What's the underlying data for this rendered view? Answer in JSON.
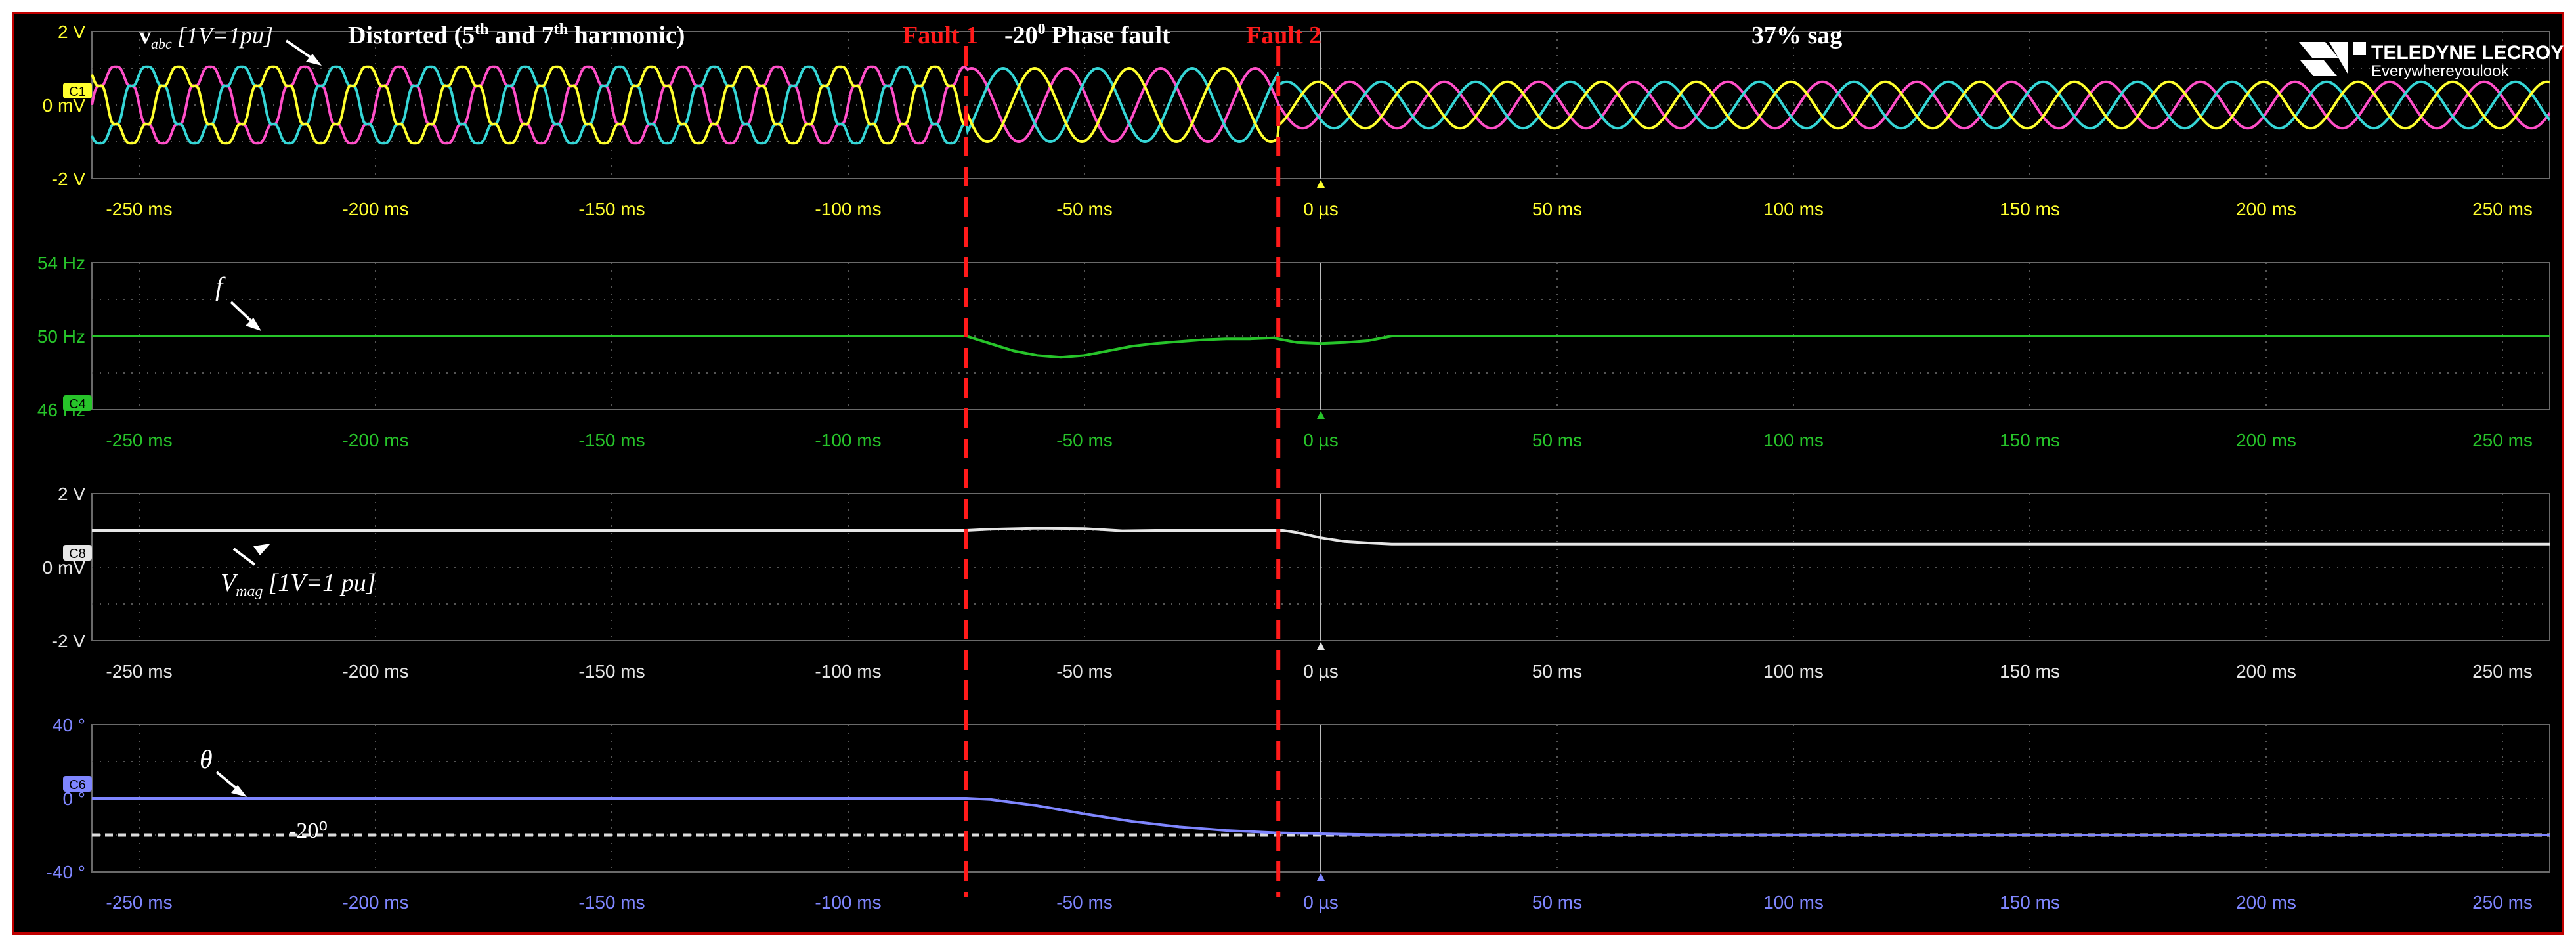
{
  "colors": {
    "phase_a": "#ff4fc8",
    "phase_b": "#35d6d6",
    "phase_c": "#ffff2e",
    "frequency": "#27c42a",
    "magnitude": "#e6e6e6",
    "angle": "#7f86ff",
    "fault_marker": "#ff1a1a",
    "frame_border": "#c00000",
    "annotation": "#ffffff"
  },
  "brand": {
    "name": "TELEDYNE LECROY",
    "tagline": "Everywhereyoulook"
  },
  "annotations": {
    "vabc_label": "v",
    "vabc_sub": "abc",
    "vabc_scale": "[1V=1pu]",
    "distorted_prefix": "Distorted (5",
    "distorted_sup1": "th",
    "distorted_mid": " and 7",
    "distorted_sup2": "th",
    "distorted_suffix": " harmonic)",
    "fault1": "Fault 1",
    "phase_fault_prefix": "-20",
    "phase_fault_sup": "0",
    "phase_fault_suffix": " Phase fault",
    "fault2": "Fault 2",
    "sag": "37% sag",
    "f_label": "f",
    "vmag_label": "V",
    "vmag_sub": "mag",
    "vmag_scale": "[1V=1 pu]",
    "theta_label": "θ",
    "ref_label": "-20⁰"
  },
  "chart_data": [
    {
      "type": "line",
      "channel_badge": "C1",
      "x_unit": "ms",
      "xlim": [
        -260,
        260
      ],
      "x_tick_labels": [
        "-250 ms",
        "-200 ms",
        "-150 ms",
        "-100 ms",
        "-50 ms",
        "0 µs",
        "50 ms",
        "100 ms",
        "150 ms",
        "200 ms",
        "250 ms"
      ],
      "x_tick_values": [
        -250,
        -200,
        -150,
        -100,
        -50,
        0,
        50,
        100,
        150,
        200,
        250
      ],
      "y_tick_labels": [
        "2 V",
        "0 mV",
        "-2 V"
      ],
      "y_tick_values": [
        2,
        0,
        -2
      ],
      "ylim": [
        -2,
        2
      ],
      "grid": true,
      "waveform": {
        "fundamental_hz": 50,
        "harmonics": [
          {
            "order": 5,
            "relative_amplitude": 0.12
          },
          {
            "order": 7,
            "relative_amplitude": 0.08
          }
        ],
        "amplitude_before_fault2": 1.0,
        "amplitude_after_fault2": 0.63,
        "phase_step_at_fault1_deg": -20
      },
      "series": [
        {
          "name": "a",
          "phase_offset_deg": 0,
          "color_key": "phase_a"
        },
        {
          "name": "b",
          "phase_offset_deg": -120,
          "color_key": "phase_b"
        },
        {
          "name": "c",
          "phase_offset_deg": 120,
          "color_key": "phase_c"
        }
      ]
    },
    {
      "type": "line",
      "channel_badge": "C4",
      "x_unit": "ms",
      "xlim": [
        -260,
        260
      ],
      "x_tick_labels": [
        "-250 ms",
        "-200 ms",
        "-150 ms",
        "-100 ms",
        "-50 ms",
        "0 µs",
        "50 ms",
        "100 ms",
        "150 ms",
        "200 ms",
        "250 ms"
      ],
      "x_tick_values": [
        -250,
        -200,
        -150,
        -100,
        -50,
        0,
        50,
        100,
        150,
        200,
        250
      ],
      "y_tick_labels": [
        "54 Hz",
        "50 Hz",
        "46 Hz"
      ],
      "y_tick_values": [
        54,
        50,
        46
      ],
      "ylim": [
        46,
        54
      ],
      "grid": true,
      "series": [
        {
          "name": "f",
          "color_key": "frequency",
          "x": [
            -260,
            -75,
            -70,
            -65,
            -60,
            -55,
            -50,
            -45,
            -40,
            -35,
            -30,
            -25,
            -20,
            -15,
            -10,
            -8,
            -5,
            0,
            5,
            10,
            15,
            20,
            260
          ],
          "y": [
            50,
            50,
            49.6,
            49.2,
            48.95,
            48.85,
            48.95,
            49.2,
            49.45,
            49.6,
            49.7,
            49.8,
            49.85,
            49.85,
            49.9,
            49.8,
            49.65,
            49.6,
            49.65,
            49.75,
            50,
            50,
            50
          ]
        }
      ]
    },
    {
      "type": "line",
      "channel_badge": "C8",
      "x_unit": "ms",
      "xlim": [
        -260,
        260
      ],
      "x_tick_labels": [
        "-250 ms",
        "-200 ms",
        "-150 ms",
        "-100 ms",
        "-50 ms",
        "0 µs",
        "50 ms",
        "100 ms",
        "150 ms",
        "200 ms",
        "250 ms"
      ],
      "x_tick_values": [
        -250,
        -200,
        -150,
        -100,
        -50,
        0,
        50,
        100,
        150,
        200,
        250
      ],
      "y_tick_labels": [
        "2 V",
        "0 mV",
        "-2 V"
      ],
      "y_tick_values": [
        2,
        0,
        -2
      ],
      "ylim": [
        -2,
        2
      ],
      "grid": true,
      "series": [
        {
          "name": "Vmag",
          "color_key": "magnitude",
          "x": [
            -260,
            -75,
            -70,
            -60,
            -50,
            -42,
            -35,
            -8,
            -5,
            0,
            5,
            10,
            15,
            260
          ],
          "y": [
            1.0,
            1.0,
            1.03,
            1.06,
            1.05,
            0.99,
            1.0,
            1.0,
            0.94,
            0.8,
            0.7,
            0.66,
            0.63,
            0.63
          ]
        }
      ]
    },
    {
      "type": "line",
      "channel_badge": "C6",
      "x_unit": "ms",
      "xlim": [
        -260,
        260
      ],
      "x_tick_labels": [
        "-250 ms",
        "-200 ms",
        "-150 ms",
        "-100 ms",
        "-50 ms",
        "0 µs",
        "50 ms",
        "100 ms",
        "150 ms",
        "200 ms",
        "250 ms"
      ],
      "x_tick_values": [
        -250,
        -200,
        -150,
        -100,
        -50,
        0,
        50,
        100,
        150,
        200,
        250
      ],
      "y_tick_labels": [
        "40 °",
        "0 °",
        "-40 °"
      ],
      "y_tick_values": [
        40,
        0,
        -40
      ],
      "ylim": [
        -40,
        40
      ],
      "grid": true,
      "reference_line": {
        "value": -20,
        "style": "dashed"
      },
      "series": [
        {
          "name": "theta",
          "color_key": "angle",
          "x": [
            -260,
            -75,
            -70,
            -60,
            -50,
            -40,
            -30,
            -20,
            -10,
            0,
            10,
            20,
            260
          ],
          "y": [
            0,
            0,
            -0.6,
            -4,
            -8.5,
            -12.5,
            -15.5,
            -17.5,
            -18.7,
            -19.3,
            -19.7,
            -19.95,
            -20
          ]
        }
      ]
    }
  ],
  "faults": [
    {
      "label_key": "fault1",
      "time_ms": -75
    },
    {
      "label_key": "fault2",
      "time_ms": -9
    }
  ]
}
